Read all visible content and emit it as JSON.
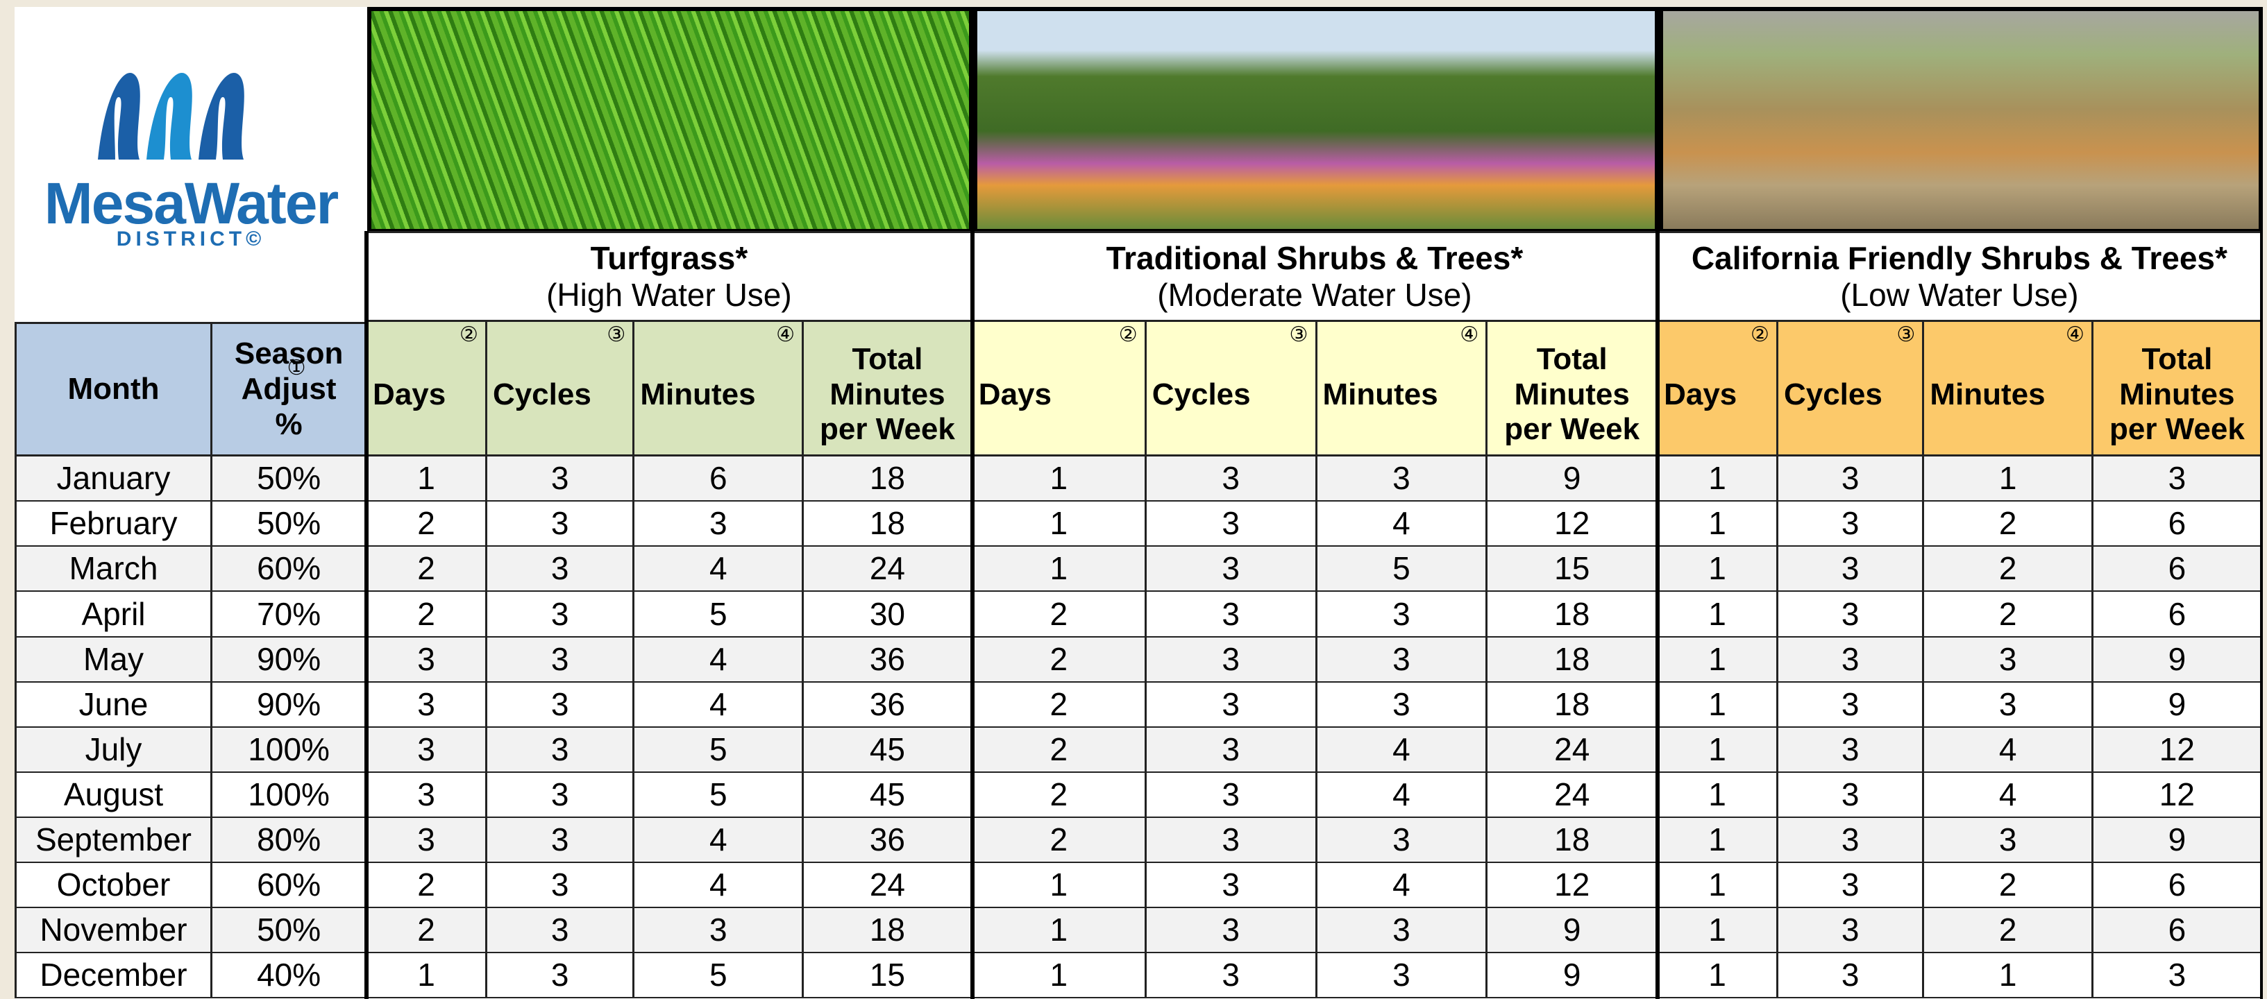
{
  "logo": {
    "name": "MesaWater",
    "sub": "DISTRICT©"
  },
  "header": {
    "month": "Month",
    "season": "Season Adjust %",
    "season_note": "①"
  },
  "groups": [
    {
      "title": "Turfgrass*",
      "subtitle": "(High Water Use)",
      "columns": [
        "Days",
        "Cycles",
        "Minutes",
        "Total Minutes per Week"
      ],
      "notes": [
        "②",
        "③",
        "④"
      ]
    },
    {
      "title": "Traditional Shrubs & Trees*",
      "subtitle": "(Moderate Water Use)",
      "columns": [
        "Days",
        "Cycles",
        "Minutes",
        "Total Minutes per Week"
      ],
      "notes": [
        "②",
        "③",
        "④"
      ]
    },
    {
      "title": "California Friendly Shrubs & Trees*",
      "subtitle": "(Low Water Use)",
      "columns": [
        "Days",
        "Cycles",
        "Minutes",
        "Total Minutes per Week"
      ],
      "notes": [
        "②",
        "③",
        "④"
      ]
    }
  ],
  "rows": [
    [
      "January",
      "50%",
      1,
      3,
      6,
      18,
      1,
      3,
      3,
      9,
      1,
      3,
      1,
      3
    ],
    [
      "February",
      "50%",
      2,
      3,
      3,
      18,
      1,
      3,
      4,
      12,
      1,
      3,
      2,
      6
    ],
    [
      "March",
      "60%",
      2,
      3,
      4,
      24,
      1,
      3,
      5,
      15,
      1,
      3,
      2,
      6
    ],
    [
      "April",
      "70%",
      2,
      3,
      5,
      30,
      2,
      3,
      3,
      18,
      1,
      3,
      2,
      6
    ],
    [
      "May",
      "90%",
      3,
      3,
      4,
      36,
      2,
      3,
      3,
      18,
      1,
      3,
      3,
      9
    ],
    [
      "June",
      "90%",
      3,
      3,
      4,
      36,
      2,
      3,
      3,
      18,
      1,
      3,
      3,
      9
    ],
    [
      "July",
      "100%",
      3,
      3,
      5,
      45,
      2,
      3,
      4,
      24,
      1,
      3,
      4,
      12
    ],
    [
      "August",
      "100%",
      3,
      3,
      5,
      45,
      2,
      3,
      4,
      24,
      1,
      3,
      4,
      12
    ],
    [
      "September",
      "80%",
      3,
      3,
      4,
      36,
      2,
      3,
      3,
      18,
      1,
      3,
      3,
      9
    ],
    [
      "October",
      "60%",
      2,
      3,
      4,
      24,
      1,
      3,
      4,
      12,
      1,
      3,
      2,
      6
    ],
    [
      "November",
      "50%",
      2,
      3,
      3,
      18,
      1,
      3,
      3,
      9,
      1,
      3,
      2,
      6
    ],
    [
      "December",
      "40%",
      1,
      3,
      5,
      15,
      1,
      3,
      3,
      9,
      1,
      3,
      1,
      3
    ]
  ]
}
